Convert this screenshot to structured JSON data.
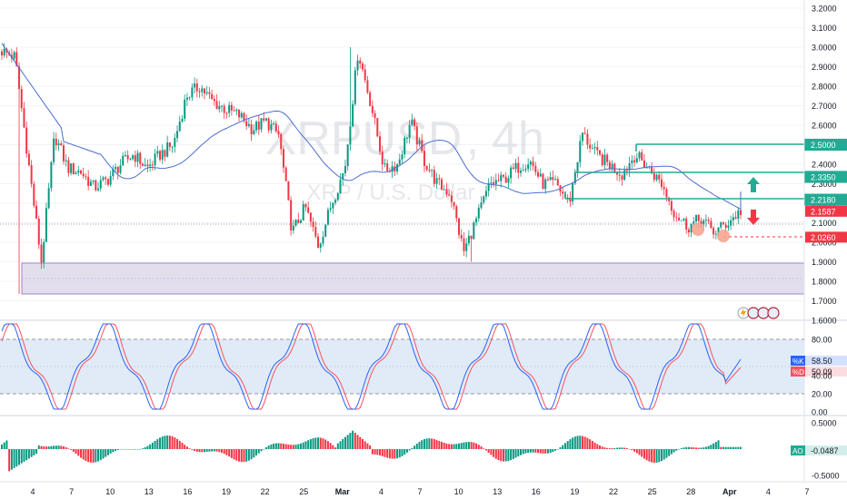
{
  "watermark": {
    "symbol": "XRPUSD",
    "sep": ",",
    "interval": "4h",
    "subtitle": "XRP / U.S. Dollar"
  },
  "colors": {
    "up": "#089981",
    "down": "#f23645",
    "ma": "#4a6ed0",
    "level": "#22ab94",
    "zone_fill": "#d8d3e6",
    "zone_line": "#9b88c8",
    "stoch_k": "#2962ff",
    "stoch_d": "#f7525f",
    "stoch_band": "#dde9f6",
    "axis_text": "#131722",
    "grid": "#f0f3fa",
    "red_label": "#f23645"
  },
  "price_axis": {
    "ticks": [
      "3.2000",
      "3.1000",
      "3.0000",
      "2.9000",
      "2.8000",
      "2.7000",
      "2.6000",
      "2.5000",
      "2.4000",
      "2.3000",
      "2.2000",
      "2.1000",
      "2.0000",
      "1.9000",
      "1.8000",
      "1.7000",
      "1.6000"
    ],
    "range": [
      1.6,
      3.2
    ]
  },
  "price_labels": [
    {
      "value": 2.5,
      "text": "2.5000",
      "style": "level"
    },
    {
      "value": 2.335,
      "text": "2.3350",
      "style": "level"
    },
    {
      "value": 2.218,
      "text": "2.2180",
      "style": "level"
    },
    {
      "value": 2.1587,
      "text": "2.1587",
      "style": "last"
    },
    {
      "value": 2.026,
      "text": "2.0260",
      "style": "support"
    }
  ],
  "time_axis": [
    "4",
    "7",
    "10",
    "13",
    "16",
    "19",
    "22",
    "25",
    "Mar",
    "4",
    "7",
    "10",
    "13",
    "16",
    "19",
    "22",
    "25",
    "28",
    "Apr",
    "4",
    "7"
  ],
  "stoch": {
    "ticks": [
      "80.00",
      "40.00",
      "20.00",
      "0.00"
    ],
    "range": [
      0,
      100
    ],
    "k_label": "%K",
    "k_value": "58.50",
    "d_label": "%D",
    "d_value": "50.09",
    "levels": [
      80,
      20
    ]
  },
  "ao": {
    "ticks": [
      "0.5000",
      "-0.5000"
    ],
    "range": [
      -0.7,
      0.65
    ],
    "label": "AO",
    "value": "-0.0487"
  },
  "chart_data": {
    "type": "candlestick",
    "series": [
      {
        "name": "XRPUSD",
        "waypoints_price": [
          2.98,
          2.95,
          2.42,
          1.9,
          2.55,
          2.38,
          2.36,
          2.28,
          2.32,
          2.4,
          2.45,
          2.38,
          2.45,
          2.5,
          2.75,
          2.8,
          2.72,
          2.68,
          2.65,
          2.58,
          2.62,
          2.55,
          2.05,
          2.18,
          1.98,
          2.2,
          2.38,
          2.98,
          2.7,
          2.37,
          2.4,
          2.62,
          2.42,
          2.3,
          2.25,
          1.95,
          2.12,
          2.3,
          2.32,
          2.38,
          2.42,
          2.3,
          2.3,
          2.2,
          2.56,
          2.45,
          2.4,
          2.35,
          2.45,
          2.38,
          2.3,
          2.15,
          2.08,
          2.12,
          2.05,
          2.1,
          2.16
        ]
      }
    ],
    "levels": [
      2.5,
      2.335,
      2.218,
      2.026
    ],
    "zone": [
      1.735,
      1.9
    ],
    "signals": [
      {
        "type": "up-arrow"
      },
      {
        "type": "down-arrow"
      }
    ]
  }
}
